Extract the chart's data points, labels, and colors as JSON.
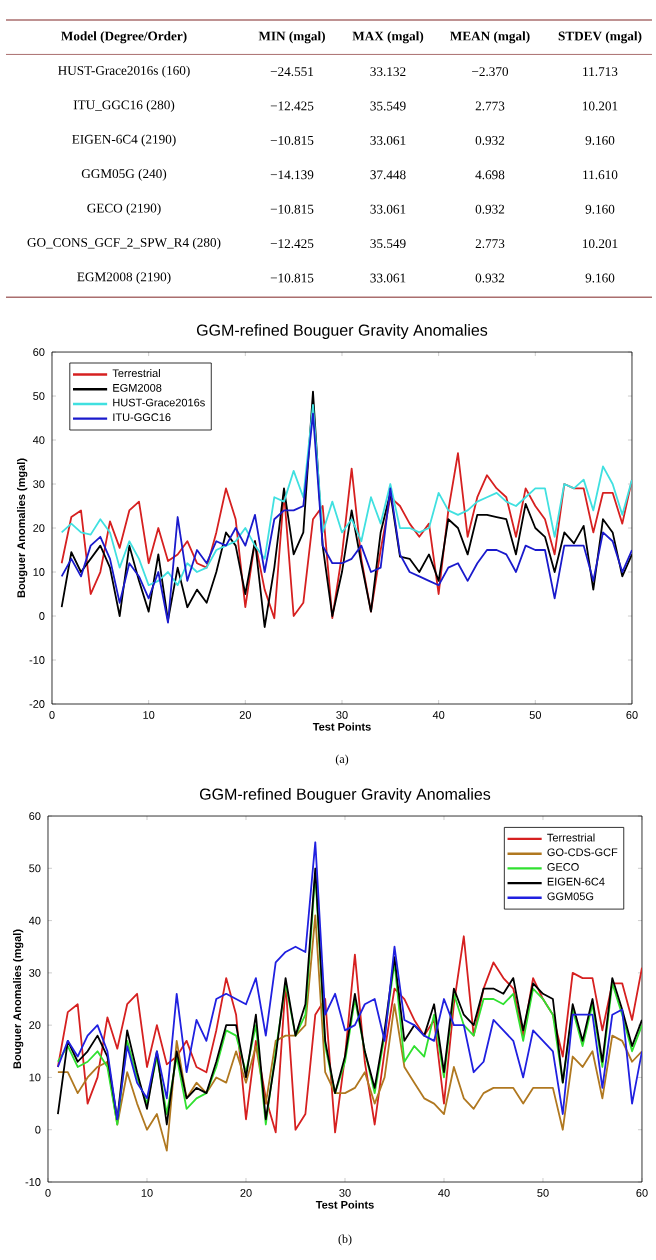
{
  "chart_data": [
    {
      "type": "other",
      "categories": [
        "Model (Degree/Order)",
        "MIN (mgal)",
        "MAX (mgal)",
        "MEAN (mgal)",
        "STDEV (mgal)"
      ],
      "y_categories": [
        "HUST-Grace2016s (160)",
        "ITU_GGC16 (280)",
        "EIGEN-6C4 (2190)",
        "GGM05G (240)",
        "GECO (2190)",
        "GO_CONS_GCF_2_SPW_R4 (280)",
        "EGM2008 (2190)"
      ],
      "cell_labels": [
        [
          "−24.551",
          "33.132",
          "−2.370",
          "11.713"
        ],
        [
          "−12.425",
          "35.549",
          "2.773",
          "10.201"
        ],
        [
          "−10.815",
          "33.061",
          "0.932",
          "9.160"
        ],
        [
          "−14.139",
          "37.448",
          "4.698",
          "11.610"
        ],
        [
          "−10.815",
          "33.061",
          "0.932",
          "9.160"
        ],
        [
          "−12.425",
          "35.549",
          "2.773",
          "10.201"
        ],
        [
          "−10.815",
          "33.061",
          "0.932",
          "9.160"
        ]
      ]
    },
    {
      "type": "line",
      "title": "GGM-refined Bouguer Gravity Anomalies",
      "xlabel": "Test Points",
      "ylabel": "Bouguer Anomalies (mgal)",
      "annotations": [
        "(a)"
      ],
      "x": [
        1,
        2,
        3,
        4,
        5,
        6,
        7,
        8,
        9,
        10,
        11,
        12,
        13,
        14,
        15,
        16,
        17,
        18,
        19,
        20,
        21,
        22,
        23,
        24,
        25,
        26,
        27,
        28,
        29,
        30,
        31,
        32,
        33,
        34,
        35,
        36,
        37,
        38,
        39,
        40,
        41,
        42,
        43,
        44,
        45,
        46,
        47,
        48,
        49,
        50,
        51,
        52,
        53,
        54,
        55,
        56,
        57,
        58,
        59,
        60
      ],
      "xlim": [
        0,
        60
      ],
      "ylim": [
        -20,
        60
      ],
      "xticks": [
        0,
        10,
        20,
        30,
        40,
        50,
        60
      ],
      "yticks": [
        -20,
        -10,
        0,
        10,
        20,
        30,
        40,
        50,
        60
      ],
      "legend": "top left",
      "series": [
        {
          "name": "Terrestrial",
          "color": "#d62020",
          "values": [
            12,
            22.5,
            24,
            5,
            10,
            21.5,
            15.5,
            24,
            26,
            12,
            20,
            12.5,
            14,
            17,
            12,
            11,
            19,
            29,
            22,
            2,
            17,
            6,
            -0.5,
            28,
            0,
            3,
            22,
            25,
            -0.5,
            14,
            33.5,
            13,
            1,
            15,
            27,
            25,
            21,
            18,
            21,
            5,
            24,
            37,
            18,
            27,
            32,
            29,
            27,
            18,
            29,
            25,
            22,
            14,
            30,
            29,
            29,
            19,
            28,
            28,
            21,
            31
          ]
        },
        {
          "name": "EGM2008",
          "color": "#000000",
          "values": [
            2,
            14.5,
            10,
            13,
            16,
            11,
            0,
            16,
            8,
            1,
            14,
            -1,
            11,
            2,
            6,
            3,
            10,
            19,
            16,
            5,
            17,
            -2.5,
            11,
            29,
            14,
            19,
            51,
            16,
            0,
            10,
            24,
            12,
            1,
            19,
            28,
            13.5,
            13,
            10,
            14,
            8,
            22,
            20,
            14,
            23,
            23,
            22.5,
            22,
            14,
            25.5,
            20,
            18,
            10,
            19,
            16.5,
            20.5,
            6,
            22,
            19,
            9,
            14
          ]
        },
        {
          "name": "HUST-Grace2016s",
          "color": "#40e0e0",
          "values": [
            19,
            21,
            19,
            18.5,
            22,
            19,
            11,
            17,
            13,
            7,
            8,
            10,
            7,
            12,
            10,
            11,
            15,
            16,
            17,
            20,
            16,
            13,
            27,
            26,
            33,
            27,
            48,
            19,
            26,
            19,
            22,
            17,
            27,
            21,
            30,
            20,
            20,
            19,
            20,
            28,
            24,
            23,
            24,
            26,
            27,
            28,
            26,
            25,
            27,
            29,
            29,
            18,
            30,
            29,
            31,
            24,
            34,
            30,
            23,
            31
          ]
        },
        {
          "name": "ITU-GGC16",
          "color": "#1a1acc",
          "values": [
            9,
            13,
            9,
            16,
            18,
            13,
            3,
            12,
            9,
            4,
            10,
            -1.5,
            22.5,
            8,
            15,
            12,
            17,
            16,
            20,
            16,
            23,
            10,
            22,
            24,
            24,
            25,
            46,
            16,
            12,
            12,
            13,
            16,
            10,
            11,
            29,
            14,
            10,
            9,
            8,
            7,
            11,
            12,
            8,
            12,
            15,
            15,
            14,
            10,
            16,
            15,
            15,
            4,
            16,
            16,
            16,
            8,
            19,
            17,
            10,
            15
          ]
        }
      ]
    },
    {
      "type": "line",
      "title": "GGM-refined Bouguer Gravity Anomalies",
      "xlabel": "Test Points",
      "ylabel": "Bouguer Anomalies (mgal)",
      "annotations": [
        "(b)"
      ],
      "x": [
        1,
        2,
        3,
        4,
        5,
        6,
        7,
        8,
        9,
        10,
        11,
        12,
        13,
        14,
        15,
        16,
        17,
        18,
        19,
        20,
        21,
        22,
        23,
        24,
        25,
        26,
        27,
        28,
        29,
        30,
        31,
        32,
        33,
        34,
        35,
        36,
        37,
        38,
        39,
        40,
        41,
        42,
        43,
        44,
        45,
        46,
        47,
        48,
        49,
        50,
        51,
        52,
        53,
        54,
        55,
        56,
        57,
        58,
        59,
        60
      ],
      "xlim": [
        0,
        60
      ],
      "ylim": [
        -10,
        60
      ],
      "xticks": [
        0,
        10,
        20,
        30,
        40,
        50,
        60
      ],
      "yticks": [
        -10,
        0,
        10,
        20,
        30,
        40,
        50,
        60
      ],
      "legend": "top right",
      "series": [
        {
          "name": "Terrestrial",
          "color": "#d62020",
          "values": [
            12,
            22.5,
            24,
            5,
            10,
            21.5,
            15.5,
            24,
            26,
            12,
            20,
            12.5,
            14,
            17,
            12,
            11,
            19,
            29,
            22,
            2,
            17,
            6,
            -0.5,
            28,
            0,
            3,
            22,
            25,
            -0.5,
            14,
            33.5,
            13,
            1,
            15,
            27,
            25,
            21,
            18,
            21,
            5,
            24,
            37,
            18,
            27,
            32,
            29,
            27,
            18,
            29,
            25,
            22,
            14,
            30,
            29,
            29,
            19,
            28,
            28,
            21,
            31
          ]
        },
        {
          "name": "GO-CDS-GCF",
          "color": "#b07820",
          "values": [
            11,
            11,
            7,
            10,
            12,
            13,
            1,
            11,
            5,
            0,
            3,
            -4,
            17,
            6,
            9,
            7,
            10,
            9,
            15,
            9,
            16,
            5,
            17,
            18,
            18,
            20,
            41,
            11,
            7,
            7,
            8,
            11,
            5,
            10,
            24,
            12,
            9,
            6,
            5,
            3,
            12,
            6,
            4,
            7,
            8,
            8,
            8,
            5,
            8,
            8,
            8,
            0,
            14,
            12,
            15,
            6,
            18,
            17,
            13,
            15
          ]
        },
        {
          "name": "GECO",
          "color": "#30e030",
          "values": [
            13,
            16,
            12,
            13,
            15,
            12,
            1,
            17,
            10,
            5,
            14,
            3,
            14,
            4,
            6,
            7,
            12,
            19,
            18,
            11,
            20,
            1,
            15,
            28,
            18,
            22,
            49,
            16,
            7,
            13,
            25,
            15,
            7,
            18,
            32,
            13,
            16,
            14,
            22,
            10,
            26,
            20,
            18,
            25,
            25,
            24,
            26,
            17,
            27,
            25,
            22,
            9,
            23,
            16,
            24,
            12,
            28,
            22,
            15,
            20
          ]
        },
        {
          "name": "EIGEN-6C4",
          "color": "#000000",
          "values": [
            3,
            17,
            13,
            15,
            18,
            14,
            2,
            19,
            11,
            4,
            15,
            1,
            15,
            6,
            8,
            7,
            13,
            20,
            20,
            10,
            22,
            2,
            14,
            29,
            18,
            24,
            50,
            17,
            7,
            14,
            26,
            15,
            8,
            19,
            33,
            17,
            20,
            18,
            24,
            11,
            27,
            22,
            20,
            27,
            27,
            26,
            29,
            19,
            28,
            26,
            25,
            9,
            24,
            17,
            25,
            13,
            29,
            23,
            16,
            21
          ]
        },
        {
          "name": "GGM05G",
          "color": "#2020e0",
          "values": [
            12,
            17,
            14,
            18,
            20,
            15,
            2,
            16,
            9,
            6,
            15,
            6,
            26,
            11,
            21,
            17,
            25,
            26,
            25,
            24,
            29,
            18,
            32,
            34,
            35,
            34,
            55,
            22,
            26,
            19,
            20,
            24,
            25,
            17,
            35,
            21,
            20,
            18,
            17,
            25,
            20,
            20,
            11,
            13,
            21,
            19,
            17,
            10,
            19,
            17,
            15,
            3,
            22,
            22,
            22,
            8,
            22,
            23,
            5,
            15
          ]
        }
      ]
    }
  ]
}
